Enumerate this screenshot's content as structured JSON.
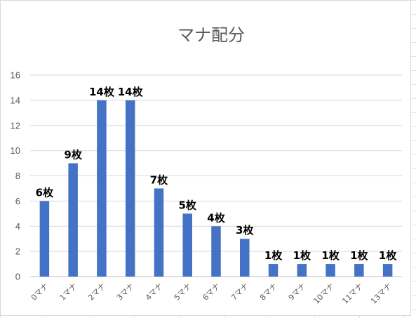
{
  "chart_data": {
    "type": "bar",
    "title": "マナ配分",
    "categories": [
      "0マナ",
      "1マナ",
      "2マナ",
      "3マナ",
      "4マナ",
      "5マナ",
      "6マナ",
      "7マナ",
      "8マナ",
      "9マナ",
      "10マナ",
      "11マナ",
      "13マナ"
    ],
    "values": [
      6,
      9,
      14,
      14,
      7,
      5,
      4,
      3,
      1,
      1,
      1,
      1,
      1
    ],
    "data_labels": [
      "6枚",
      "9枚",
      "14枚",
      "14枚",
      "7枚",
      "5枚",
      "4枚",
      "3枚",
      "1枚",
      "1枚",
      "1枚",
      "1枚",
      "1枚"
    ],
    "ylim": [
      0,
      16
    ],
    "yticks": [
      0,
      2,
      4,
      6,
      8,
      10,
      12,
      14,
      16
    ],
    "grid": true,
    "legend": "none",
    "bar_color": "#4472C4"
  }
}
